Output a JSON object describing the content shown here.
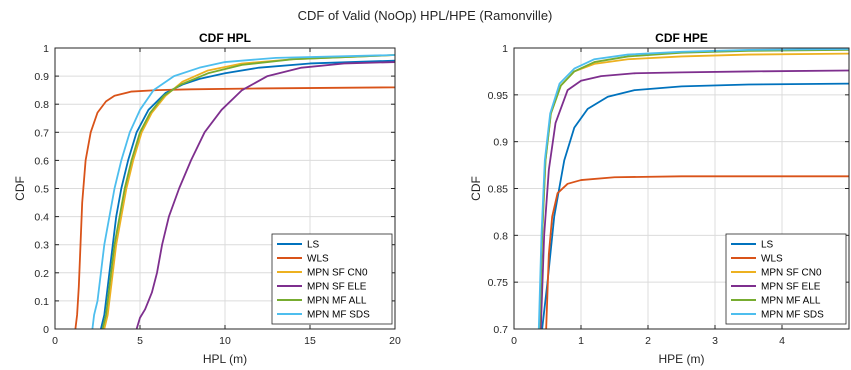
{
  "figure_title": "CDF of Valid (NoOp) HPL/HPE (Ramonville)",
  "chart_data": [
    {
      "type": "line",
      "title": "CDF HPL",
      "xlabel": "HPL (m)",
      "ylabel": "CDF",
      "xlim": [
        0,
        20
      ],
      "ylim": [
        0,
        1
      ],
      "xticks": [
        0,
        5,
        10,
        15,
        20
      ],
      "yticks": [
        0,
        0.1,
        0.2,
        0.3,
        0.4,
        0.5,
        0.6,
        0.7,
        0.8,
        0.9,
        1
      ],
      "ytick_labels": [
        "0",
        "0.1",
        "0.2",
        "0.3",
        "0.4",
        "0.5",
        "0.6",
        "0.7",
        "0.8",
        "0.9",
        "1"
      ],
      "grid": true,
      "legend_position": "bottom-right",
      "series": [
        {
          "name": "LS",
          "color": "#0072BD",
          "points": [
            [
              2.7,
              0
            ],
            [
              2.9,
              0.05
            ],
            [
              3.0,
              0.1
            ],
            [
              3.1,
              0.15
            ],
            [
              3.2,
              0.2
            ],
            [
              3.4,
              0.3
            ],
            [
              3.6,
              0.4
            ],
            [
              3.9,
              0.5
            ],
            [
              4.3,
              0.6
            ],
            [
              4.8,
              0.7
            ],
            [
              5.5,
              0.78
            ],
            [
              6.5,
              0.84
            ],
            [
              7.5,
              0.87
            ],
            [
              8.5,
              0.89
            ],
            [
              10,
              0.91
            ],
            [
              12,
              0.93
            ],
            [
              15,
              0.945
            ],
            [
              20,
              0.955
            ]
          ]
        },
        {
          "name": "WLS",
          "color": "#D95319",
          "points": [
            [
              1.2,
              0
            ],
            [
              1.3,
              0.05
            ],
            [
              1.4,
              0.15
            ],
            [
              1.5,
              0.3
            ],
            [
              1.6,
              0.45
            ],
            [
              1.8,
              0.6
            ],
            [
              2.1,
              0.7
            ],
            [
              2.5,
              0.77
            ],
            [
              3.0,
              0.81
            ],
            [
              3.5,
              0.83
            ],
            [
              4.5,
              0.845
            ],
            [
              6,
              0.85
            ],
            [
              8,
              0.853
            ],
            [
              12,
              0.856
            ],
            [
              20,
              0.86
            ]
          ]
        },
        {
          "name": "MPN SF CN0",
          "color": "#EDB120",
          "points": [
            [
              2.9,
              0
            ],
            [
              3.1,
              0.05
            ],
            [
              3.2,
              0.1
            ],
            [
              3.3,
              0.15
            ],
            [
              3.4,
              0.2
            ],
            [
              3.6,
              0.3
            ],
            [
              3.9,
              0.4
            ],
            [
              4.2,
              0.5
            ],
            [
              4.6,
              0.6
            ],
            [
              5.1,
              0.7
            ],
            [
              5.7,
              0.77
            ],
            [
              6.5,
              0.83
            ],
            [
              7.5,
              0.88
            ],
            [
              9,
              0.92
            ],
            [
              11,
              0.945
            ],
            [
              14,
              0.96
            ],
            [
              20,
              0.975
            ]
          ]
        },
        {
          "name": "MPN SF ELE",
          "color": "#7E2F8E",
          "points": [
            [
              4.8,
              0
            ],
            [
              4.9,
              0.02
            ],
            [
              5.0,
              0.04
            ],
            [
              5.3,
              0.07
            ],
            [
              5.5,
              0.1
            ],
            [
              5.7,
              0.13
            ],
            [
              6.0,
              0.2
            ],
            [
              6.3,
              0.3
            ],
            [
              6.7,
              0.4
            ],
            [
              7.3,
              0.5
            ],
            [
              8.0,
              0.6
            ],
            [
              8.8,
              0.7
            ],
            [
              9.8,
              0.78
            ],
            [
              11,
              0.85
            ],
            [
              12.5,
              0.9
            ],
            [
              14.5,
              0.93
            ],
            [
              17,
              0.945
            ],
            [
              20,
              0.95
            ]
          ]
        },
        {
          "name": "MPN MF ALL",
          "color": "#77AC30",
          "points": [
            [
              2.8,
              0
            ],
            [
              3.0,
              0.05
            ],
            [
              3.1,
              0.1
            ],
            [
              3.2,
              0.15
            ],
            [
              3.3,
              0.2
            ],
            [
              3.5,
              0.3
            ],
            [
              3.8,
              0.4
            ],
            [
              4.1,
              0.5
            ],
            [
              4.5,
              0.6
            ],
            [
              5.0,
              0.7
            ],
            [
              5.6,
              0.77
            ],
            [
              6.4,
              0.83
            ],
            [
              7.4,
              0.87
            ],
            [
              9,
              0.91
            ],
            [
              11,
              0.94
            ],
            [
              14,
              0.96
            ],
            [
              20,
              0.975
            ]
          ]
        },
        {
          "name": "MPN MF SDS",
          "color": "#4DBEEE",
          "points": [
            [
              2.2,
              0
            ],
            [
              2.3,
              0.05
            ],
            [
              2.5,
              0.1
            ],
            [
              2.6,
              0.15
            ],
            [
              2.7,
              0.2
            ],
            [
              2.9,
              0.3
            ],
            [
              3.2,
              0.4
            ],
            [
              3.5,
              0.5
            ],
            [
              3.9,
              0.6
            ],
            [
              4.4,
              0.7
            ],
            [
              5.0,
              0.78
            ],
            [
              5.8,
              0.85
            ],
            [
              7,
              0.9
            ],
            [
              8.5,
              0.93
            ],
            [
              10,
              0.95
            ],
            [
              13,
              0.965
            ],
            [
              20,
              0.975
            ]
          ]
        }
      ]
    },
    {
      "type": "line",
      "title": "CDF HPE",
      "xlabel": "HPE (m)",
      "ylabel": "CDF",
      "xlim": [
        0,
        5
      ],
      "ylim": [
        0.7,
        1
      ],
      "xticks": [
        0,
        1,
        2,
        3,
        4
      ],
      "yticks": [
        0.7,
        0.75,
        0.8,
        0.85,
        0.9,
        0.95,
        1
      ],
      "ytick_labels": [
        "0.7",
        "0.75",
        "0.8",
        "0.85",
        "0.9",
        "0.95",
        "1"
      ],
      "grid": true,
      "legend_position": "bottom-right",
      "series": [
        {
          "name": "LS",
          "color": "#0072BD",
          "points": [
            [
              0.42,
              0.7
            ],
            [
              0.5,
              0.75
            ],
            [
              0.6,
              0.82
            ],
            [
              0.75,
              0.88
            ],
            [
              0.9,
              0.915
            ],
            [
              1.1,
              0.935
            ],
            [
              1.4,
              0.948
            ],
            [
              1.8,
              0.955
            ],
            [
              2.5,
              0.959
            ],
            [
              3.5,
              0.961
            ],
            [
              5,
              0.962
            ]
          ]
        },
        {
          "name": "WLS",
          "color": "#D95319",
          "points": [
            [
              0.48,
              0.7
            ],
            [
              0.52,
              0.78
            ],
            [
              0.57,
              0.82
            ],
            [
              0.65,
              0.845
            ],
            [
              0.8,
              0.855
            ],
            [
              1.0,
              0.859
            ],
            [
              1.5,
              0.862
            ],
            [
              2.5,
              0.863
            ],
            [
              5,
              0.863
            ]
          ]
        },
        {
          "name": "MPN SF CN0",
          "color": "#EDB120",
          "points": [
            [
              0.38,
              0.7
            ],
            [
              0.42,
              0.8
            ],
            [
              0.47,
              0.88
            ],
            [
              0.55,
              0.93
            ],
            [
              0.7,
              0.96
            ],
            [
              0.9,
              0.975
            ],
            [
              1.2,
              0.983
            ],
            [
              1.7,
              0.988
            ],
            [
              2.5,
              0.991
            ],
            [
              3.5,
              0.993
            ],
            [
              5,
              0.994
            ]
          ]
        },
        {
          "name": "MPN SF ELE",
          "color": "#7E2F8E",
          "points": [
            [
              0.4,
              0.7
            ],
            [
              0.45,
              0.8
            ],
            [
              0.52,
              0.87
            ],
            [
              0.62,
              0.92
            ],
            [
              0.8,
              0.955
            ],
            [
              1.0,
              0.965
            ],
            [
              1.3,
              0.97
            ],
            [
              1.8,
              0.973
            ],
            [
              2.5,
              0.974
            ],
            [
              3.5,
              0.975
            ],
            [
              5,
              0.976
            ]
          ]
        },
        {
          "name": "MPN MF ALL",
          "color": "#77AC30",
          "points": [
            [
              0.38,
              0.7
            ],
            [
              0.42,
              0.8
            ],
            [
              0.47,
              0.88
            ],
            [
              0.55,
              0.93
            ],
            [
              0.7,
              0.96
            ],
            [
              0.9,
              0.975
            ],
            [
              1.2,
              0.985
            ],
            [
              1.7,
              0.991
            ],
            [
              2.5,
              0.995
            ],
            [
              3.5,
              0.997
            ],
            [
              5,
              0.998
            ]
          ]
        },
        {
          "name": "MPN MF SDS",
          "color": "#4DBEEE",
          "points": [
            [
              0.37,
              0.7
            ],
            [
              0.41,
              0.8
            ],
            [
              0.46,
              0.88
            ],
            [
              0.54,
              0.93
            ],
            [
              0.68,
              0.962
            ],
            [
              0.9,
              0.978
            ],
            [
              1.2,
              0.988
            ],
            [
              1.7,
              0.993
            ],
            [
              2.5,
              0.996
            ],
            [
              3.5,
              0.998
            ],
            [
              5,
              0.999
            ]
          ]
        }
      ]
    }
  ]
}
